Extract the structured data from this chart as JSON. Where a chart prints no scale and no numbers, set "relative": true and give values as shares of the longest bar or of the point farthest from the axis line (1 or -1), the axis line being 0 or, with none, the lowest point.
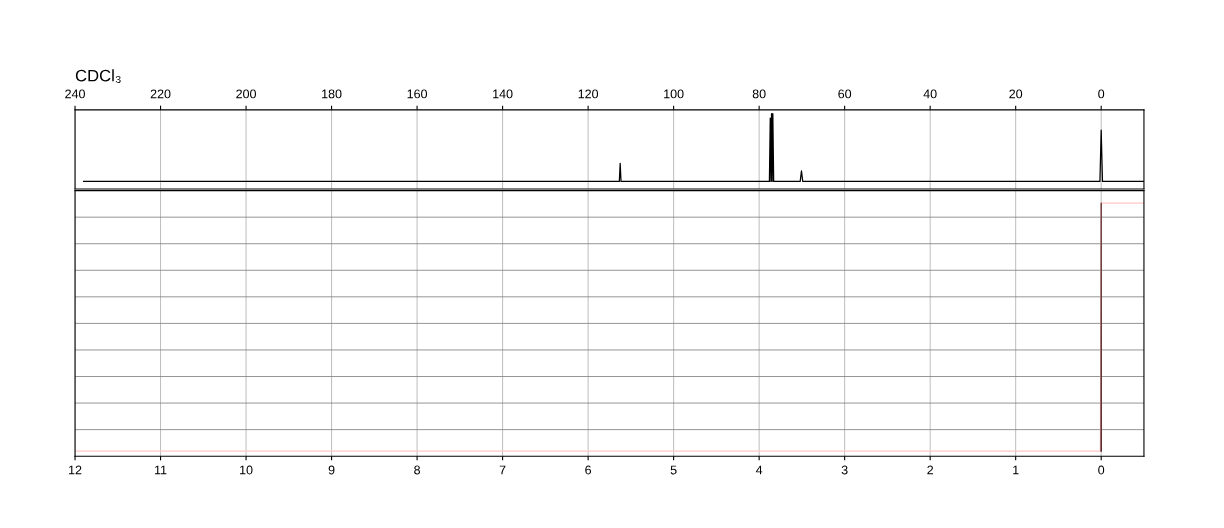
{
  "chart_data": [
    {
      "type": "line",
      "relative": true,
      "annotations": [
        "CDCl₃"
      ],
      "xlim": [
        240,
        -10
      ],
      "xticks": [
        240,
        220,
        200,
        180,
        160,
        140,
        120,
        100,
        80,
        60,
        40,
        20,
        0
      ],
      "grid": "x",
      "tick_labels": "x",
      "line_style": "solid",
      "series": [
        {
          "color": "#000000",
          "x": [
            238,
            200,
            150,
            113,
            112.7,
            112.5,
            112.3,
            112,
            90,
            78,
            77.6,
            77.4,
            77.25,
            77.1,
            76.95,
            76.8,
            76.6,
            72,
            70.4,
            70.1,
            69.8,
            40,
            0.3,
            0,
            -0.3,
            -10
          ],
          "values": [
            0.1,
            0.1,
            0.1,
            0.1,
            0.1,
            0.34,
            0.1,
            0.1,
            0.1,
            0.1,
            0.1,
            0.94,
            0.1,
            1,
            0.1,
            1,
            0.1,
            0.1,
            0.1,
            0.24,
            0.1,
            0.1,
            0.1,
            0.78,
            0.1,
            0.1
          ]
        }
      ]
    },
    {
      "type": "line",
      "relative": true,
      "xlim": [
        12,
        -0.5
      ],
      "xticks": [
        12,
        11,
        10,
        9,
        8,
        7,
        6,
        5,
        4,
        3,
        2,
        1,
        0
      ],
      "grid": true,
      "tick_labels": "x",
      "line_style": "solid",
      "series": [
        {
          "color": "#ffc8c8",
          "x": [
            12,
            0.01,
            0,
            -0.5
          ],
          "values": [
            0,
            0,
            1,
            1
          ]
        },
        {
          "color": "#5a2a2a",
          "x": [
            0.002,
            0,
            -0.002
          ],
          "values": [
            0,
            1,
            0
          ]
        }
      ]
    }
  ]
}
